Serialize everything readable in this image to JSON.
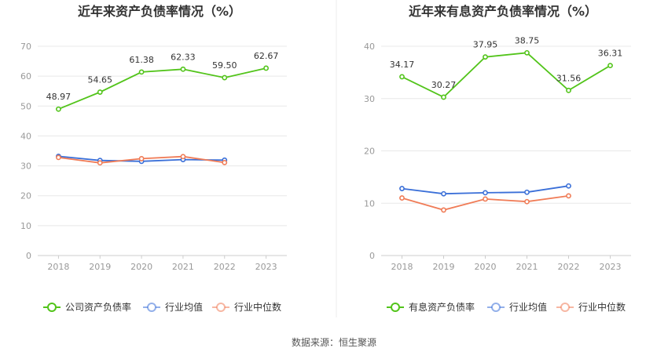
{
  "source": "数据来源：恒生聚源",
  "chart_data": [
    {
      "type": "line",
      "title": "近年来资产负债率情况（%）",
      "categories": [
        "2018",
        "2019",
        "2020",
        "2021",
        "2022",
        "2023"
      ],
      "ylim": [
        0,
        70
      ],
      "yticks": [
        0,
        10,
        20,
        30,
        40,
        50,
        60,
        70
      ],
      "grid": true,
      "legend_position": "bottom",
      "series": [
        {
          "name": "公司资产负债率",
          "color": "#52c41a",
          "values": [
            48.97,
            54.65,
            61.38,
            62.33,
            59.5,
            62.67
          ],
          "labels": [
            "48.97",
            "54.65",
            "61.38",
            "62.33",
            "59.50",
            "62.67"
          ]
        },
        {
          "name": "行业均值",
          "color": "#3a6fd8",
          "values": [
            33.2,
            31.8,
            31.5,
            32.1,
            31.9,
            null
          ]
        },
        {
          "name": "行业中位数",
          "color": "#f07c57",
          "values": [
            32.8,
            31.0,
            32.4,
            33.1,
            31.1,
            null
          ]
        }
      ]
    },
    {
      "type": "line",
      "title": "近年来有息资产负债率情况（%）",
      "categories": [
        "2018",
        "2019",
        "2020",
        "2021",
        "2022",
        "2023"
      ],
      "ylim": [
        0,
        40
      ],
      "yticks": [
        0,
        10,
        20,
        30,
        40
      ],
      "grid": true,
      "legend_position": "bottom",
      "series": [
        {
          "name": "有息资产负债率",
          "color": "#52c41a",
          "values": [
            34.17,
            30.27,
            37.95,
            38.75,
            31.56,
            36.31
          ],
          "labels": [
            "34.17",
            "30.27",
            "37.95",
            "38.75",
            "31.56",
            "36.31"
          ]
        },
        {
          "name": "行业均值",
          "color": "#3a6fd8",
          "values": [
            12.8,
            11.8,
            12.0,
            12.1,
            13.3,
            null
          ]
        },
        {
          "name": "行业中位数",
          "color": "#f07c57",
          "values": [
            11.0,
            8.7,
            10.8,
            10.3,
            11.4,
            null
          ]
        }
      ]
    }
  ]
}
